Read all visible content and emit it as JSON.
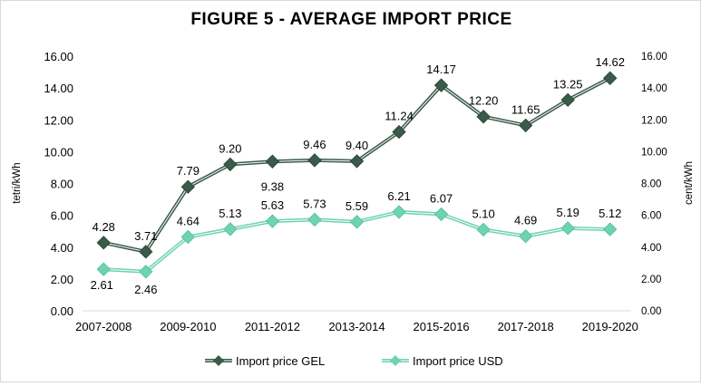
{
  "chart_data": {
    "type": "line",
    "title": "FIGURE  5 - AVERAGE IMPORT PRICE",
    "ylabel": "tetri/kWh",
    "y2label": "cent/kWh",
    "ylim": [
      0,
      16
    ],
    "yticks": [
      "0.00",
      "2.00",
      "4.00",
      "6.00",
      "8.00",
      "10.00",
      "12.00",
      "14.00",
      "16.00"
    ],
    "categories": [
      "2007-2008",
      "",
      "2009-2010",
      "",
      "2011-2012",
      "",
      "2013-2014",
      "",
      "2015-2016",
      "",
      "2017-2018",
      "",
      "2019-2020"
    ],
    "series": [
      {
        "name": "Import price GEL",
        "color": "#3a5a4a",
        "marker": "diamond",
        "values": [
          4.28,
          3.71,
          7.79,
          9.2,
          9.38,
          9.46,
          9.4,
          11.24,
          14.17,
          12.2,
          11.65,
          13.25,
          14.62
        ],
        "labels": [
          "4.28",
          "3.71",
          "7.79",
          "9.20",
          "9.38",
          "9.46",
          "9.40",
          "11.24",
          "14.17",
          "12.20",
          "11.65",
          "13.25",
          "14.62"
        ]
      },
      {
        "name": "Import price USD",
        "color": "#6dd3b0",
        "marker": "diamond",
        "values": [
          2.61,
          2.46,
          4.64,
          5.13,
          5.63,
          5.73,
          5.59,
          6.21,
          6.07,
          5.1,
          4.69,
          5.19,
          5.12
        ],
        "labels": [
          "2.61",
          "2.46",
          "4.64",
          "5.13",
          "5.63",
          "5.73",
          "5.59",
          "6.21",
          "6.07",
          "5.10",
          "4.69",
          "5.19",
          "5.12"
        ]
      }
    ],
    "legend": "bottom",
    "grid": false
  }
}
